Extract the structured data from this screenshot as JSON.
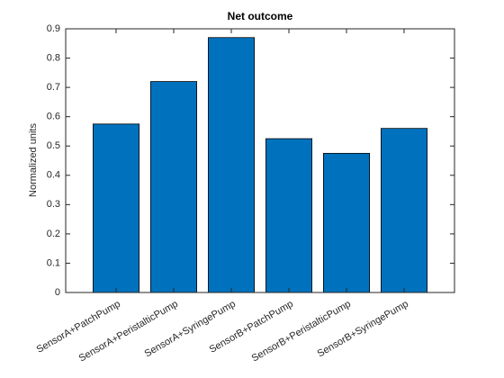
{
  "chart_data": {
    "type": "bar",
    "title": "Net outcome",
    "y_label": "Normalized units",
    "categories": [
      "SensorA+PatchPump",
      "SensorA+PeristalticPump",
      "SensorA+SyringePump",
      "SensorB+PatchPump",
      "SensorB+PeristalticPump",
      "SensorB+SyringePump"
    ],
    "values": [
      0.575,
      0.72,
      0.87,
      0.525,
      0.475,
      0.56
    ],
    "color": "#0072bd",
    "ylim": [
      0,
      0.9
    ],
    "yticks": [
      0,
      0.1,
      0.2,
      0.3,
      0.4,
      0.5,
      0.6,
      0.7,
      0.8,
      0.9
    ],
    "grid": false
  }
}
